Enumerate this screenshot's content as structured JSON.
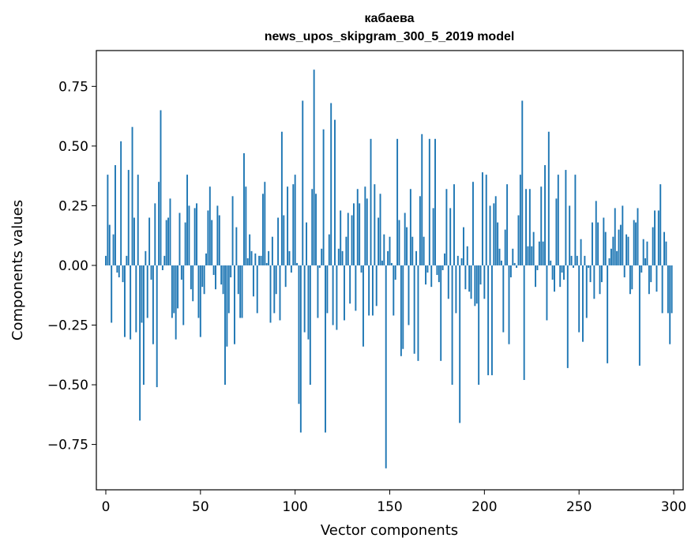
{
  "chart_data": {
    "type": "bar",
    "title": "кабаева",
    "subtitle": "news_upos_skipgram_300_5_2019 model",
    "xlabel": "Vector components",
    "ylabel": "Components values",
    "xlim": [
      -5,
      305
    ],
    "ylim": [
      -0.94,
      0.9
    ],
    "xticks": [
      0,
      50,
      100,
      150,
      200,
      250,
      300
    ],
    "xtick_labels": [
      "0",
      "50",
      "100",
      "150",
      "200",
      "250",
      "300"
    ],
    "yticks": [
      -0.75,
      -0.5,
      -0.25,
      0.0,
      0.25,
      0.5,
      0.75
    ],
    "ytick_labels": [
      "−0.75",
      "−0.50",
      "−0.25",
      "0.00",
      "0.25",
      "0.50",
      "0.75"
    ],
    "bar_color": "#1f77b4",
    "values": [
      0.04,
      0.38,
      0.17,
      -0.24,
      0.13,
      0.42,
      -0.03,
      -0.05,
      0.52,
      -0.07,
      -0.3,
      0.04,
      0.4,
      -0.31,
      0.58,
      0.2,
      -0.28,
      0.38,
      -0.65,
      -0.24,
      -0.5,
      0.06,
      -0.22,
      0.2,
      -0.06,
      -0.33,
      0.26,
      -0.51,
      0.35,
      0.65,
      -0.02,
      0.04,
      0.19,
      0.2,
      0.28,
      -0.22,
      -0.2,
      -0.31,
      -0.18,
      0.22,
      -0.06,
      -0.25,
      0.18,
      0.38,
      0.25,
      -0.1,
      -0.15,
      0.24,
      0.26,
      -0.22,
      -0.3,
      -0.09,
      -0.12,
      0.05,
      0.23,
      0.33,
      0.19,
      -0.04,
      -0.1,
      0.25,
      0.21,
      -0.08,
      -0.12,
      -0.5,
      -0.34,
      -0.2,
      -0.05,
      0.29,
      -0.33,
      0.16,
      -0.12,
      -0.22,
      -0.22,
      0.47,
      0.33,
      0.03,
      0.13,
      0.06,
      -0.13,
      0.05,
      -0.2,
      0.04,
      0.04,
      0.3,
      0.35,
      0.01,
      0.06,
      -0.24,
      0.12,
      -0.2,
      -0.12,
      0.2,
      -0.23,
      0.56,
      0.21,
      -0.09,
      0.33,
      0.06,
      -0.03,
      0.34,
      0.38,
      0.01,
      -0.58,
      -0.7,
      0.69,
      -0.28,
      0.18,
      -0.31,
      -0.5,
      0.32,
      0.82,
      0.3,
      -0.22,
      -0.01,
      0.07,
      0.57,
      -0.7,
      -0.2,
      0.13,
      0.68,
      -0.25,
      0.61,
      -0.27,
      0.07,
      0.23,
      0.06,
      -0.23,
      0.12,
      0.22,
      -0.16,
      0.21,
      0.26,
      -0.19,
      0.32,
      0.26,
      -0.03,
      -0.34,
      0.33,
      0.28,
      -0.21,
      0.53,
      -0.21,
      0.34,
      -0.17,
      0.2,
      0.3,
      0.02,
      0.13,
      -0.85,
      0.06,
      0.12,
      0.01,
      -0.21,
      -0.06,
      0.53,
      0.19,
      -0.38,
      -0.35,
      0.22,
      0.16,
      -0.25,
      0.32,
      0.12,
      -0.37,
      0.06,
      -0.4,
      0.29,
      0.55,
      0.12,
      -0.08,
      -0.03,
      0.53,
      -0.09,
      0.24,
      0.53,
      -0.04,
      -0.07,
      -0.4,
      -0.02,
      0.05,
      0.32,
      -0.14,
      0.24,
      -0.5,
      0.34,
      -0.2,
      0.04,
      -0.66,
      0.03,
      0.16,
      -0.1,
      0.08,
      -0.11,
      -0.14,
      0.35,
      -0.17,
      -0.16,
      -0.5,
      -0.08,
      0.39,
      -0.14,
      0.38,
      -0.46,
      0.25,
      -0.46,
      0.26,
      0.29,
      0.18,
      0.07,
      0.02,
      -0.28,
      0.15,
      0.34,
      -0.33,
      -0.05,
      0.07,
      0.01,
      -0.01,
      0.21,
      0.38,
      0.69,
      -0.48,
      0.32,
      0.08,
      0.32,
      0.08,
      0.14,
      -0.09,
      -0.02,
      0.1,
      0.33,
      0.1,
      0.42,
      -0.23,
      0.56,
      0.02,
      -0.06,
      -0.11,
      0.28,
      0.38,
      -0.09,
      -0.03,
      -0.06,
      0.4,
      -0.43,
      0.25,
      0.04,
      -0.01,
      0.38,
      0.04,
      -0.28,
      0.11,
      -0.32,
      0.04,
      -0.22,
      -0.01,
      -0.07,
      0.18,
      -0.14,
      0.27,
      0.18,
      -0.12,
      -0.07,
      0.2,
      0.14,
      -0.41,
      0.03,
      0.07,
      0.12,
      0.24,
      0.06,
      0.15,
      0.17,
      0.25,
      -0.05,
      0.13,
      0.12,
      -0.12,
      -0.1,
      0.19,
      0.18,
      0.24,
      -0.42,
      -0.03,
      0.11,
      0.03,
      0.1,
      -0.12,
      -0.07,
      0.16,
      0.23,
      -0.11,
      0.23,
      0.34,
      -0.2,
      0.14,
      0.1,
      -0.2,
      -0.33,
      -0.2
    ]
  }
}
